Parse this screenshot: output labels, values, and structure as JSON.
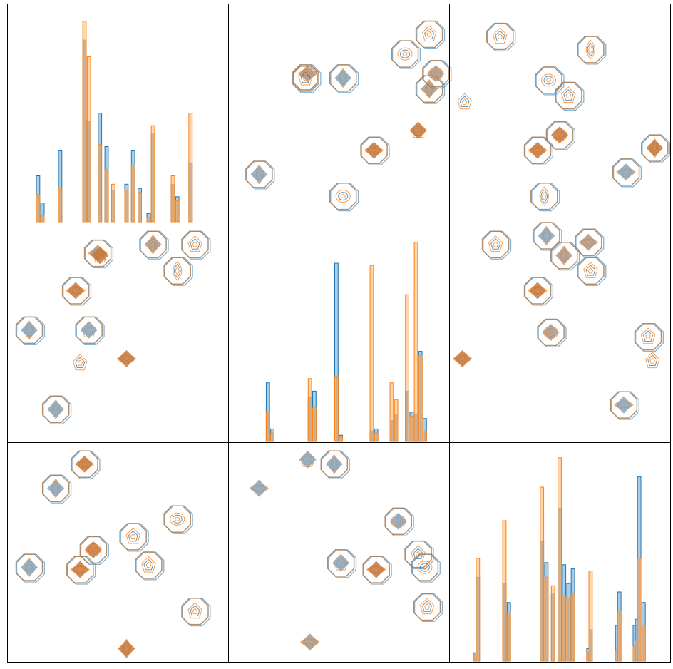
{
  "colors": {
    "series_a": "#1f77b4",
    "series_a_fill": "#9ec4e0",
    "series_b": "#ff7f0e",
    "series_b_fill": "#ffc487",
    "overlap_fill": "#c7a98f",
    "panel_border": "#000000"
  },
  "chart_data": {
    "type": "pairplot",
    "layout": "3x3",
    "title": "",
    "axis_labels": [],
    "tick_labels": [],
    "legend": [],
    "diagonal_type": "histogram",
    "off_diagonal_type": "kde_contour",
    "series": [
      {
        "name": "",
        "color": "#1f77b4"
      },
      {
        "name": "",
        "color": "#ff7f0e"
      }
    ],
    "panels": [
      {
        "row": 0,
        "col": 0,
        "type": "histogram",
        "domain": [
          0,
          100
        ],
        "ylim": [
          0,
          1
        ],
        "bins": [
          {
            "x": 14,
            "a": 0.22,
            "b": 0.13
          },
          {
            "x": 16,
            "a": 0.09,
            "b": 0.03
          },
          {
            "x": 24,
            "a": 0.34,
            "b": 0.16
          },
          {
            "x": 35,
            "a": 0.87,
            "b": 0.96
          },
          {
            "x": 37,
            "a": 0.48,
            "b": 0.79
          },
          {
            "x": 42,
            "a": 0.52,
            "b": 0.37
          },
          {
            "x": 45,
            "a": 0.36,
            "b": 0.25
          },
          {
            "x": 48,
            "a": 0.15,
            "b": 0.18
          },
          {
            "x": 54,
            "a": 0.18,
            "b": 0.15
          },
          {
            "x": 57,
            "a": 0.34,
            "b": 0.27
          },
          {
            "x": 60,
            "a": 0.16,
            "b": 0.14
          },
          {
            "x": 64,
            "a": 0.04,
            "b": 0.02
          },
          {
            "x": 66,
            "a": 0.42,
            "b": 0.46
          },
          {
            "x": 75,
            "a": 0.18,
            "b": 0.22
          },
          {
            "x": 77,
            "a": 0.12,
            "b": 0.1
          },
          {
            "x": 83,
            "a": 0.28,
            "b": 0.52
          }
        ]
      },
      {
        "row": 0,
        "col": 1,
        "type": "contour",
        "blobs": [
          {
            "x": 14,
            "y": 78,
            "ring": 1,
            "core": "a",
            "ls": 1
          },
          {
            "x": 36,
            "y": 32,
            "ring": 0,
            "core": "ab",
            "ls": 0
          },
          {
            "x": 35,
            "y": 34,
            "ring": 2,
            "core": "none",
            "ls": 3
          },
          {
            "x": 52,
            "y": 34,
            "ring": 1,
            "core": "a",
            "ls": 1
          },
          {
            "x": 66,
            "y": 67,
            "ring": 1,
            "core": "b",
            "ls": 0
          },
          {
            "x": 86,
            "y": 58,
            "ring": 0,
            "core": "b",
            "ls": 3
          },
          {
            "x": 80,
            "y": 23,
            "ring": 1,
            "core": "none",
            "ls": 2
          },
          {
            "x": 91,
            "y": 14,
            "ring": 1,
            "core": "none",
            "ls": 3
          },
          {
            "x": 91,
            "y": 39,
            "ring": 1,
            "core": "ab",
            "ls": 1
          },
          {
            "x": 94,
            "y": 32,
            "ring": 1,
            "core": "ab",
            "ls": 2
          },
          {
            "x": 52,
            "y": 88,
            "ring": 1,
            "core": "none",
            "ls": 2
          }
        ]
      },
      {
        "row": 0,
        "col": 2,
        "type": "contour",
        "blobs": [
          {
            "x": 7,
            "y": 45,
            "ring": 0,
            "core": "none",
            "ls": 3
          },
          {
            "x": 23,
            "y": 15,
            "ring": 1,
            "core": "none",
            "ls": 3
          },
          {
            "x": 64,
            "y": 21,
            "ring": 1,
            "core": "none",
            "ls": 1
          },
          {
            "x": 45,
            "y": 35,
            "ring": 1,
            "core": "none",
            "ls": 2
          },
          {
            "x": 54,
            "y": 42,
            "ring": 1,
            "core": "none",
            "ls": 3
          },
          {
            "x": 50,
            "y": 60,
            "ring": 1,
            "core": "b",
            "ls": 2
          },
          {
            "x": 40,
            "y": 67,
            "ring": 1,
            "core": "b",
            "ls": 0
          },
          {
            "x": 93,
            "y": 66,
            "ring": 1,
            "core": "b",
            "ls": 1
          },
          {
            "x": 80,
            "y": 77,
            "ring": 1,
            "core": "a",
            "ls": 0
          },
          {
            "x": 43,
            "y": 88,
            "ring": 1,
            "core": "none",
            "ls": 1
          }
        ]
      },
      {
        "row": 1,
        "col": 0,
        "type": "contour",
        "blobs": [
          {
            "x": 41,
            "y": 14,
            "ring": 1,
            "core": "ab",
            "ls": 0
          },
          {
            "x": 66,
            "y": 10,
            "ring": 1,
            "core": "ab",
            "ls": 1
          },
          {
            "x": 42,
            "y": 15,
            "ring": 0,
            "core": "b",
            "ls": 3
          },
          {
            "x": 85,
            "y": 10,
            "ring": 1,
            "core": "none",
            "ls": 3
          },
          {
            "x": 77,
            "y": 22,
            "ring": 1,
            "core": "none",
            "ls": 1
          },
          {
            "x": 31,
            "y": 31,
            "ring": 1,
            "core": "b",
            "ls": 0
          },
          {
            "x": 10,
            "y": 49,
            "ring": 1,
            "core": "a",
            "ls": 1
          },
          {
            "x": 37,
            "y": 49,
            "ring": 1,
            "core": "a",
            "ls": 3
          },
          {
            "x": 33,
            "y": 64,
            "ring": 0,
            "core": "none",
            "ls": 3
          },
          {
            "x": 54,
            "y": 62,
            "ring": 0,
            "core": "b",
            "ls": 0
          },
          {
            "x": 22,
            "y": 85,
            "ring": 1,
            "core": "a",
            "ls": 1
          }
        ]
      },
      {
        "row": 1,
        "col": 1,
        "type": "histogram",
        "domain": [
          0,
          100
        ],
        "ylim": [
          0,
          1
        ],
        "bins": [
          {
            "x": 18,
            "a": 0.28,
            "b": 0.14
          },
          {
            "x": 20,
            "a": 0.06,
            "b": 0.04
          },
          {
            "x": 37,
            "a": 0.21,
            "b": 0.3
          },
          {
            "x": 39,
            "a": 0.24,
            "b": 0.16
          },
          {
            "x": 49,
            "a": 0.85,
            "b": 0.31
          },
          {
            "x": 51,
            "a": 0.03,
            "b": 0.02
          },
          {
            "x": 65,
            "a": 0.05,
            "b": 0.84
          },
          {
            "x": 67,
            "a": 0.06,
            "b": 0.04
          },
          {
            "x": 74,
            "a": 0.1,
            "b": 0.28
          },
          {
            "x": 76,
            "a": 0.13,
            "b": 0.2
          },
          {
            "x": 81,
            "a": 0.24,
            "b": 0.7
          },
          {
            "x": 83,
            "a": 0.14,
            "b": 0.12
          },
          {
            "x": 85,
            "a": 0.13,
            "b": 0.95
          },
          {
            "x": 87,
            "a": 0.43,
            "b": 0.41
          },
          {
            "x": 89,
            "a": 0.11,
            "b": 0.05
          }
        ]
      },
      {
        "row": 1,
        "col": 2,
        "type": "contour",
        "blobs": [
          {
            "x": 21,
            "y": 10,
            "ring": 1,
            "core": "none",
            "ls": 3
          },
          {
            "x": 44,
            "y": 6,
            "ring": 1,
            "core": "a",
            "ls": 1
          },
          {
            "x": 52,
            "y": 15,
            "ring": 1,
            "core": "ab",
            "ls": 1
          },
          {
            "x": 63,
            "y": 9,
            "ring": 1,
            "core": "ab",
            "ls": 0
          },
          {
            "x": 64,
            "y": 22,
            "ring": 1,
            "core": "none",
            "ls": 3
          },
          {
            "x": 40,
            "y": 31,
            "ring": 1,
            "core": "b",
            "ls": 0
          },
          {
            "x": 46,
            "y": 50,
            "ring": 1,
            "core": "ab",
            "ls": 2
          },
          {
            "x": 6,
            "y": 62,
            "ring": 0,
            "core": "b",
            "ls": 0
          },
          {
            "x": 90,
            "y": 52,
            "ring": 1,
            "core": "none",
            "ls": 3
          },
          {
            "x": 92,
            "y": 63,
            "ring": 0,
            "core": "none",
            "ls": 3
          },
          {
            "x": 79,
            "y": 83,
            "ring": 1,
            "core": "a",
            "ls": 0
          }
        ]
      },
      {
        "row": 2,
        "col": 0,
        "type": "contour",
        "blobs": [
          {
            "x": 35,
            "y": 10,
            "ring": 1,
            "core": "b",
            "ls": 0
          },
          {
            "x": 22,
            "y": 21,
            "ring": 1,
            "core": "a",
            "ls": 1
          },
          {
            "x": 77,
            "y": 35,
            "ring": 1,
            "core": "none",
            "ls": 2
          },
          {
            "x": 57,
            "y": 43,
            "ring": 1,
            "core": "none",
            "ls": 3
          },
          {
            "x": 39,
            "y": 49,
            "ring": 1,
            "core": "b",
            "ls": 2
          },
          {
            "x": 10,
            "y": 57,
            "ring": 1,
            "core": "a",
            "ls": 1
          },
          {
            "x": 33,
            "y": 58,
            "ring": 1,
            "core": "b",
            "ls": 0
          },
          {
            "x": 64,
            "y": 56,
            "ring": 1,
            "core": "none",
            "ls": 3
          },
          {
            "x": 85,
            "y": 77,
            "ring": 1,
            "core": "none",
            "ls": 3
          },
          {
            "x": 54,
            "y": 94,
            "ring": 0,
            "core": "b",
            "ls": 1
          }
        ]
      },
      {
        "row": 2,
        "col": 1,
        "type": "contour",
        "blobs": [
          {
            "x": 36,
            "y": 8,
            "ring": 0,
            "core": "a",
            "ls": 3
          },
          {
            "x": 48,
            "y": 10,
            "ring": 1,
            "core": "a",
            "ls": 1
          },
          {
            "x": 14,
            "y": 21,
            "ring": 0,
            "core": "a",
            "ls": 0
          },
          {
            "x": 77,
            "y": 36,
            "ring": 1,
            "core": "a",
            "ls": 2
          },
          {
            "x": 51,
            "y": 55,
            "ring": 1,
            "core": "a",
            "ls": 3
          },
          {
            "x": 67,
            "y": 58,
            "ring": 1,
            "core": "b",
            "ls": 0
          },
          {
            "x": 86,
            "y": 51,
            "ring": 1,
            "core": "none",
            "ls": 3
          },
          {
            "x": 89,
            "y": 57,
            "ring": 1,
            "core": "none",
            "ls": 2
          },
          {
            "x": 90,
            "y": 75,
            "ring": 1,
            "core": "none",
            "ls": 3
          },
          {
            "x": 37,
            "y": 91,
            "ring": 0,
            "core": "ab",
            "ls": 0
          }
        ]
      },
      {
        "row": 2,
        "col": 2,
        "type": "histogram",
        "domain": [
          0,
          100
        ],
        "ylim": [
          0,
          1
        ],
        "bins": [
          {
            "x": 12,
            "a": 0.04,
            "b": 0.03
          },
          {
            "x": 13,
            "a": 0.4,
            "b": 0.49
          },
          {
            "x": 25,
            "a": 0.37,
            "b": 0.67
          },
          {
            "x": 27,
            "a": 0.28,
            "b": 0.23
          },
          {
            "x": 42,
            "a": 0.57,
            "b": 0.83
          },
          {
            "x": 44,
            "a": 0.47,
            "b": 0.4
          },
          {
            "x": 47,
            "a": 0.32,
            "b": 0.36
          },
          {
            "x": 50,
            "a": 0.73,
            "b": 0.97
          },
          {
            "x": 52,
            "a": 0.46,
            "b": 0.31
          },
          {
            "x": 54,
            "a": 0.37,
            "b": 0.3
          },
          {
            "x": 56,
            "a": 0.44,
            "b": 0.32
          },
          {
            "x": 63,
            "a": 0.06,
            "b": 0.04
          },
          {
            "x": 64,
            "a": 0.15,
            "b": 0.43
          },
          {
            "x": 76,
            "a": 0.17,
            "b": 0.05
          },
          {
            "x": 77,
            "a": 0.33,
            "b": 0.24
          },
          {
            "x": 84,
            "a": 0.17,
            "b": 0.07
          },
          {
            "x": 85,
            "a": 0.2,
            "b": 0.1
          },
          {
            "x": 86,
            "a": 0.88,
            "b": 0.49
          },
          {
            "x": 88,
            "a": 0.28,
            "b": 0.17
          }
        ]
      }
    ]
  }
}
